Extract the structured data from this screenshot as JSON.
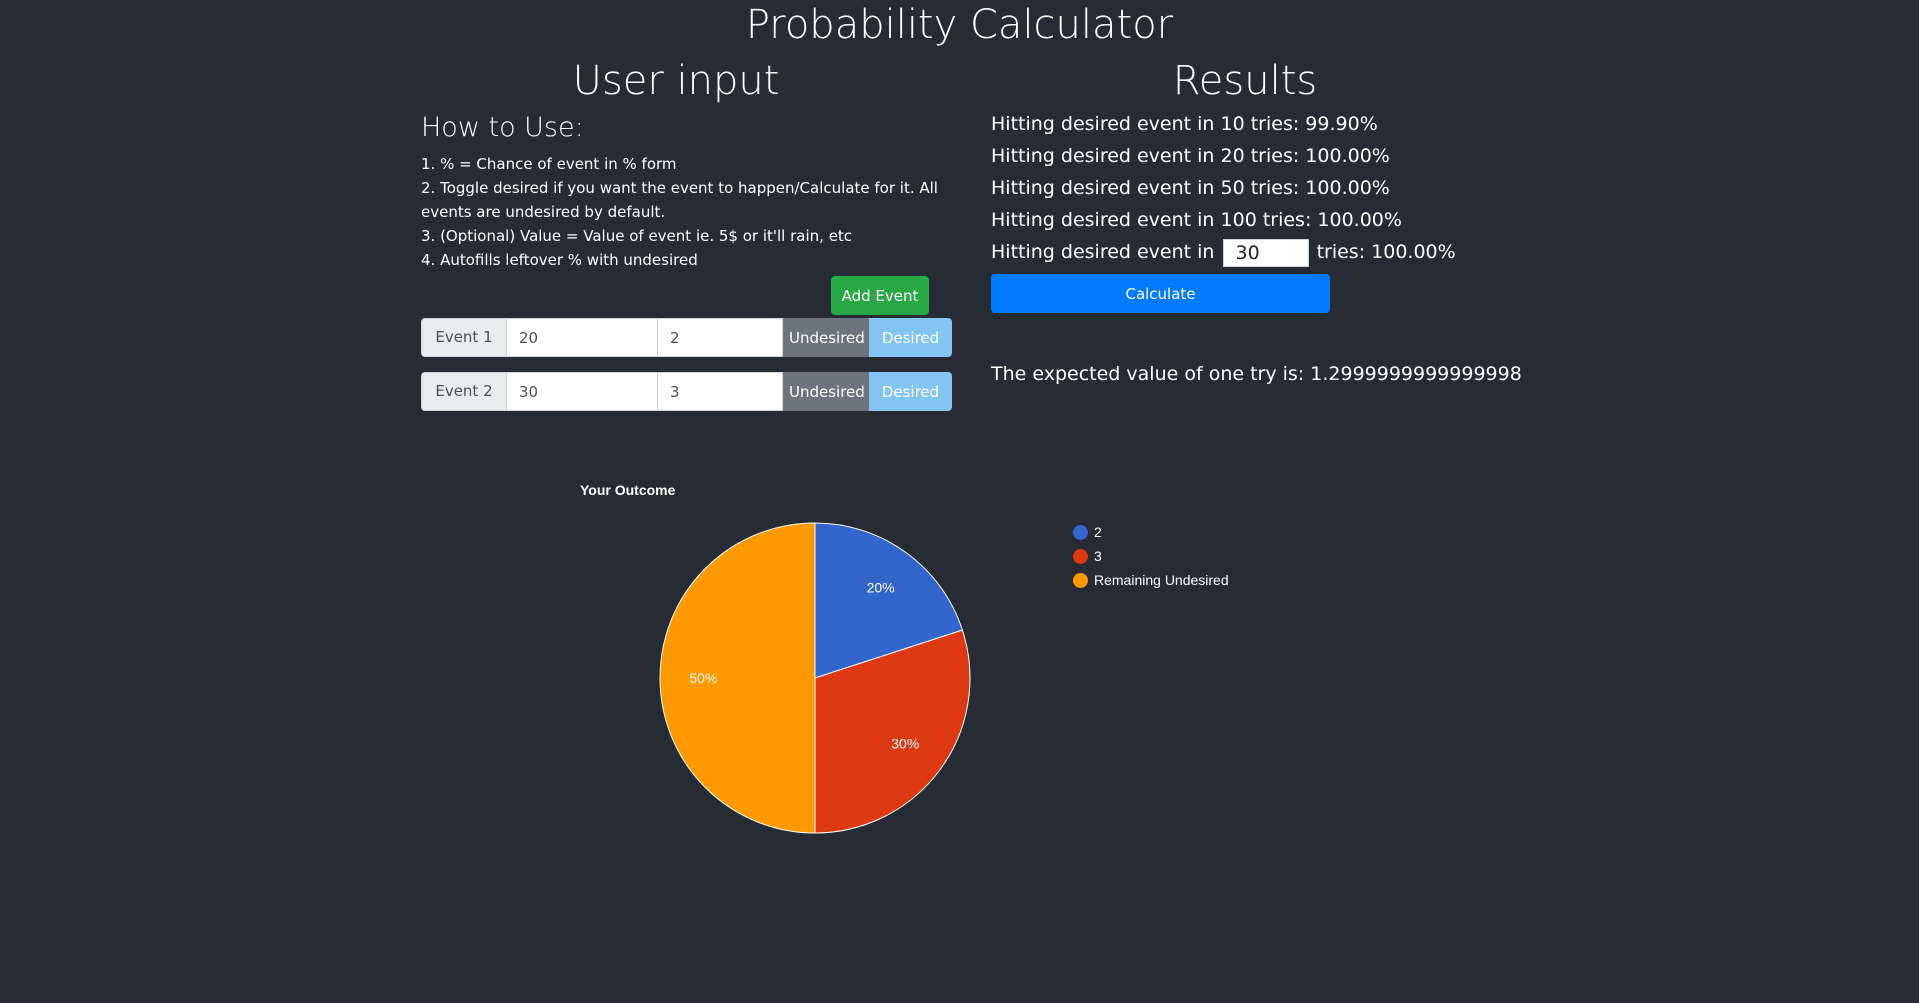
{
  "app": {
    "title": "Probability Calculator"
  },
  "input_section": {
    "title": "User input",
    "howto_title": "How to Use:",
    "instructions": [
      "1. % = Chance of event in % form",
      "2. Toggle desired if you want the event to happen/Calculate for it. All events are undesired by default.",
      "3. (Optional) Value = Value of event ie. 5$ or it'll rain, etc",
      "4. Autofills leftover % with undesired"
    ],
    "add_event_label": "Add Event",
    "events": [
      {
        "label": "Event 1",
        "percent": "20",
        "value": "2",
        "undesired_label": "Undesired",
        "desired_label": "Desired"
      },
      {
        "label": "Event 2",
        "percent": "30",
        "value": "3",
        "undesired_label": "Undesired",
        "desired_label": "Desired"
      }
    ]
  },
  "results_section": {
    "title": "Results",
    "lines": [
      "Hitting desired event in 10 tries: 99.90%",
      "Hitting desired event in 20 tries: 100.00%",
      "Hitting desired event in 50 tries: 100.00%",
      "Hitting desired event in 100 tries: 100.00%"
    ],
    "custom_prefix": "Hitting desired event in",
    "custom_tries": "30",
    "custom_suffix": "tries: 100.00%",
    "calculate_label": "Calculate",
    "expected_value_text": "The expected value of one try is: 1.2999999999999998"
  },
  "chart_data": {
    "type": "pie",
    "title": "Your Outcome",
    "slices": [
      {
        "name": "2",
        "value": 20,
        "label": "20%",
        "color": "#3366cc"
      },
      {
        "name": "3",
        "value": 30,
        "label": "30%",
        "color": "#dc3912"
      },
      {
        "name": "Remaining Undesired",
        "value": 50,
        "label": "50%",
        "color": "#ff9900"
      }
    ],
    "legend_position": "right"
  }
}
